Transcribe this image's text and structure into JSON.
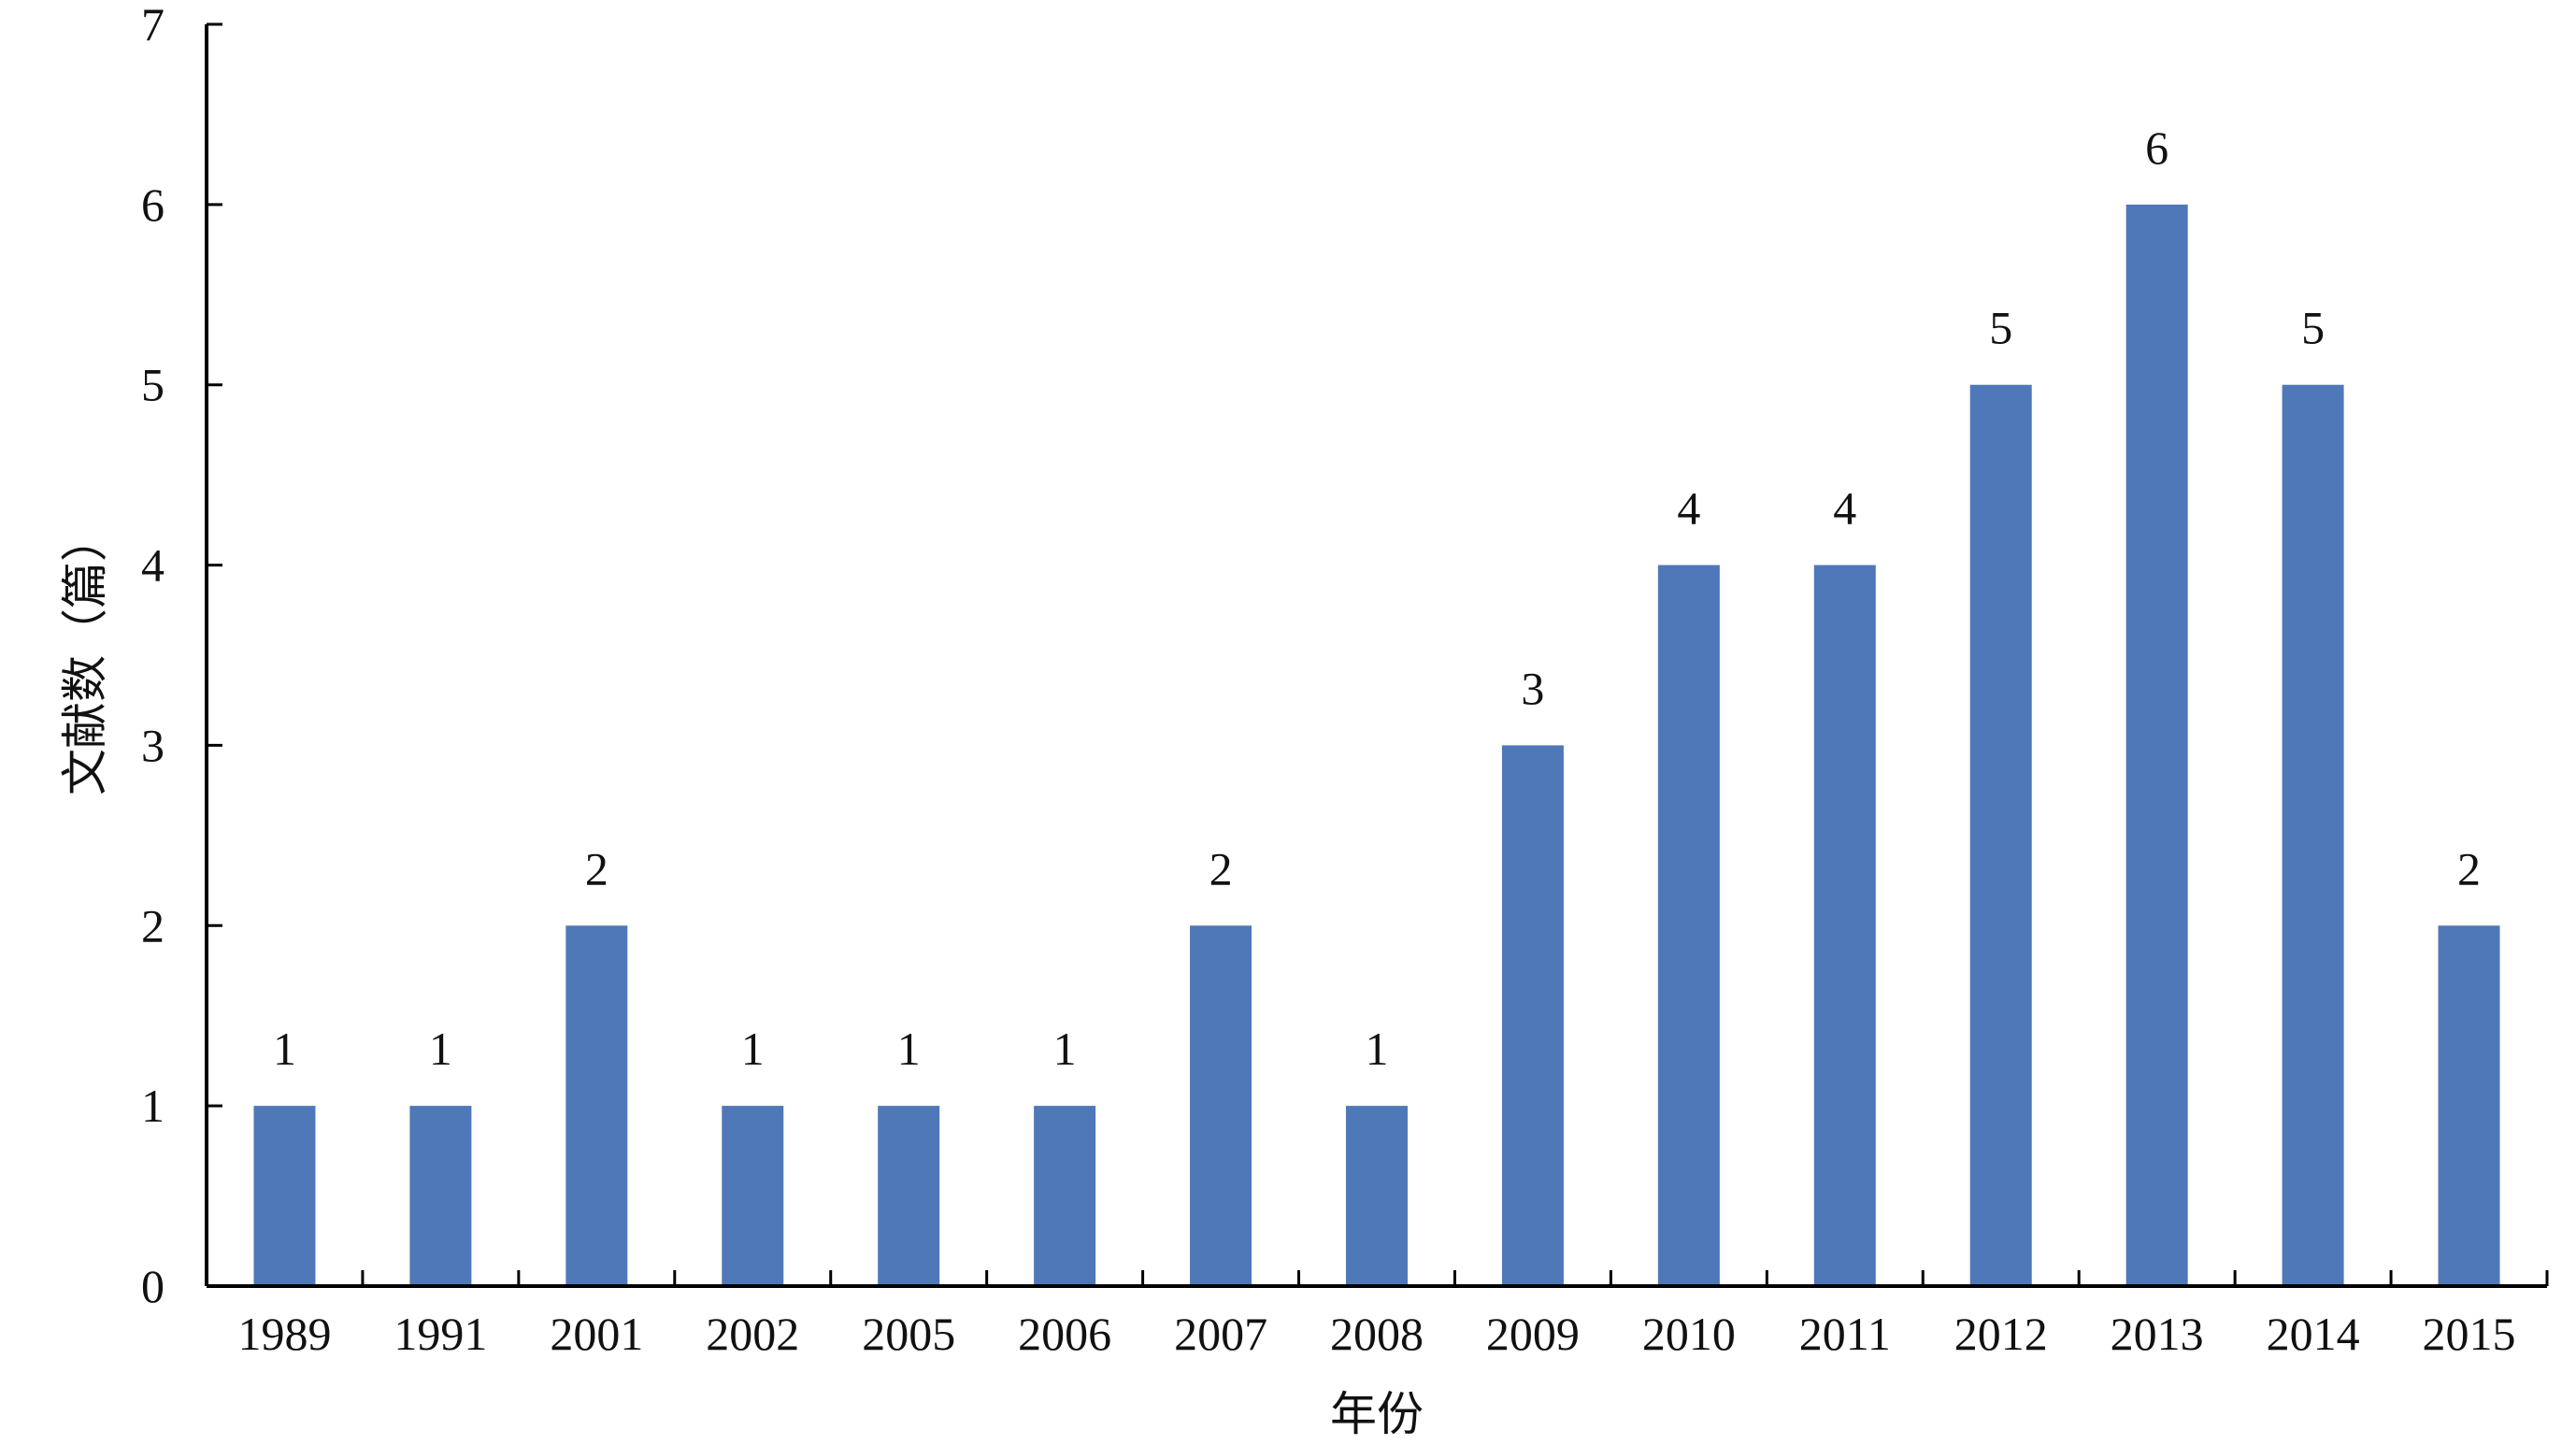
{
  "chart_data": {
    "type": "bar",
    "xlabel": "年份",
    "ylabel": "文献数（篇）",
    "categories": [
      "1989",
      "1991",
      "2001",
      "2002",
      "2005",
      "2006",
      "2007",
      "2008",
      "2009",
      "2010",
      "2011",
      "2012",
      "2013",
      "2014",
      "2015"
    ],
    "values": [
      1,
      1,
      2,
      1,
      1,
      1,
      2,
      1,
      3,
      4,
      4,
      5,
      6,
      5,
      2
    ],
    "data_labels": [
      "1",
      "1",
      "2",
      "1",
      "1",
      "1",
      "2",
      "1",
      "3",
      "4",
      "4",
      "5",
      "6",
      "5",
      "2"
    ],
    "yticks": [
      "0",
      "1",
      "2",
      "3",
      "4",
      "5",
      "6",
      "7"
    ],
    "ylim": [
      0,
      7
    ],
    "grid": false,
    "legend": "none",
    "bar_color": "#4F78B8"
  }
}
